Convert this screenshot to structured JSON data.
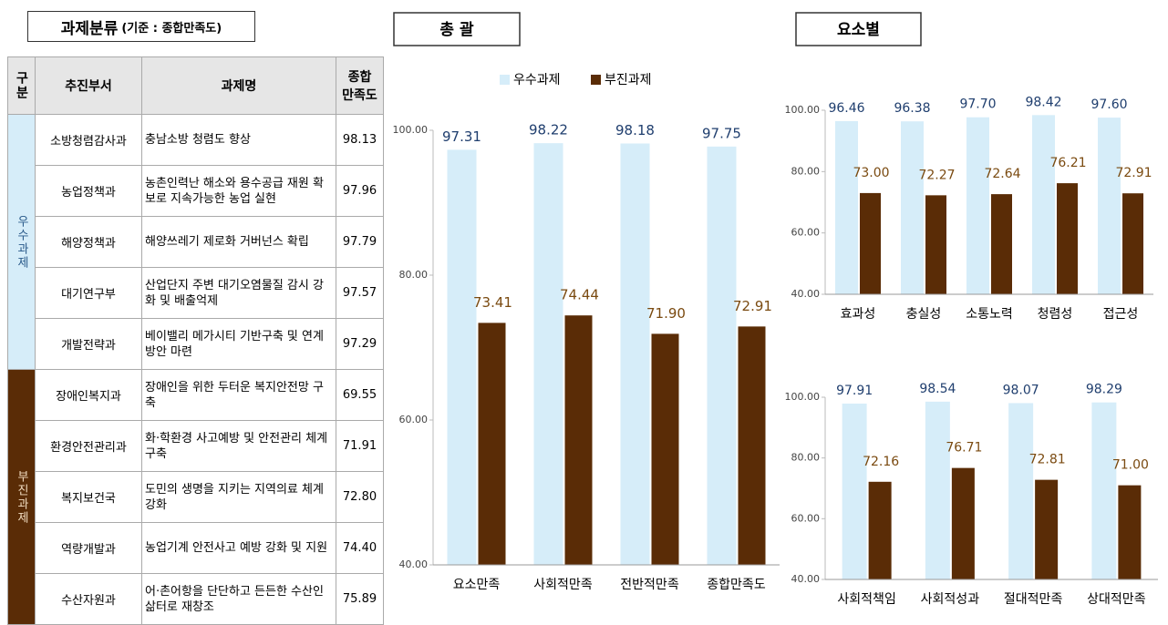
{
  "heading": {
    "title": "과제분류",
    "note": "(기준 : 종합만족도)"
  },
  "table": {
    "header": [
      "구분",
      "추진부서",
      "과제명",
      "종합\n만족도"
    ],
    "groups": [
      {
        "label": "우수과제",
        "rows": [
          [
            "소방청렴감사과",
            "충남소방 청렴도 향상",
            "98.13"
          ],
          [
            "농업정책과",
            "농촌인력난 해소와 용수공급 재원 확보로 지속가능한 농업 실현",
            "97.96"
          ],
          [
            "해양정책과",
            "해양쓰레기 제로화 거버넌스 확립",
            "97.79"
          ],
          [
            "대기연구부",
            "산업단지 주변 대기오염물질 감시 강화 및 배출억제",
            "97.57"
          ],
          [
            "개발전략과",
            "베이밸리 메가시티 기반구축 및 연계방안 마련",
            "97.29"
          ]
        ]
      },
      {
        "label": "부진과제",
        "rows": [
          [
            "장애인복지과",
            "장애인을 위한 두터운 복지안전망 구축",
            "69.55"
          ],
          [
            "환경안전관리과",
            "화·학환경 사고예방 및 안전관리 체계 구축",
            "71.91"
          ],
          [
            "복지보건국",
            "도민의 생명을 지키는 지역의료 체계 강화",
            "72.80"
          ],
          [
            "역량개발과",
            "농업기계 안전사고 예방 강화 및 지원",
            "74.40"
          ],
          [
            "수산자원과",
            "어·촌어항을 단단하고 든든한 수산인 삶터로 재창조",
            "75.89"
          ]
        ]
      }
    ]
  },
  "chart_data": [
    {
      "type": "bar",
      "title": "총 괄",
      "categories": [
        "요소만족",
        "사회적만족",
        "전반적만족",
        "종합만족도"
      ],
      "series": [
        {
          "name": "우수과제",
          "color": "#d6edf9",
          "values": [
            97.31,
            98.22,
            98.18,
            97.75
          ],
          "value_labels": [
            "97.31",
            "98.22",
            "98.18",
            "97.75"
          ]
        },
        {
          "name": "부진과제",
          "color": "#5a2c06",
          "values": [
            73.41,
            74.44,
            71.9,
            72.91
          ],
          "value_labels": [
            "73.41",
            "74.44",
            "71.90",
            "72.91"
          ]
        }
      ],
      "ylim": [
        40,
        100
      ],
      "yticks": [
        {
          "value": 40,
          "label": "40.00"
        },
        {
          "value": 60,
          "label": "60.00"
        },
        {
          "value": 80,
          "label": "80.00"
        },
        {
          "value": 100,
          "label": "100.00"
        }
      ],
      "legend": "top",
      "grid": false
    },
    {
      "type": "bar",
      "title": "요소별",
      "categories": [
        "효과성",
        "충실성",
        "소통노력",
        "청렴성",
        "접근성"
      ],
      "series": [
        {
          "color": "#d6edf9",
          "values": [
            96.46,
            96.38,
            97.7,
            98.42,
            97.6
          ],
          "value_labels": [
            "96.46",
            "96.38",
            "97.70",
            "98.42",
            "97.60"
          ]
        },
        {
          "color": "#5a2c06",
          "values": [
            73.0,
            72.27,
            72.64,
            76.21,
            72.91
          ],
          "value_labels": [
            "73.00",
            "72.27",
            "72.64",
            "76.21",
            "72.91"
          ]
        }
      ],
      "ylim": [
        40,
        100
      ],
      "yticks": [
        {
          "value": 40,
          "label": "40.00"
        },
        {
          "value": 60,
          "label": "60.00"
        },
        {
          "value": 80,
          "label": "80.00"
        },
        {
          "value": 100,
          "label": "100.00"
        }
      ],
      "grid": false
    },
    {
      "type": "bar",
      "categories": [
        "사회적책임",
        "사회적성과",
        "절대적만족",
        "상대적만족"
      ],
      "series": [
        {
          "color": "#d6edf9",
          "values": [
            97.91,
            98.54,
            98.07,
            98.29
          ],
          "value_labels": [
            "97.91",
            "98.54",
            "98.07",
            "98.29"
          ]
        },
        {
          "color": "#5a2c06",
          "values": [
            72.16,
            76.71,
            72.81,
            71.0
          ],
          "value_labels": [
            "72.16",
            "76.71",
            "72.81",
            "71.00"
          ]
        }
      ],
      "ylim": [
        40,
        100
      ],
      "yticks": [
        {
          "value": 40,
          "label": "40.00"
        },
        {
          "value": 60,
          "label": "60.00"
        },
        {
          "value": 80,
          "label": "80.00"
        },
        {
          "value": 100,
          "label": "100.00"
        }
      ],
      "grid": false
    }
  ]
}
